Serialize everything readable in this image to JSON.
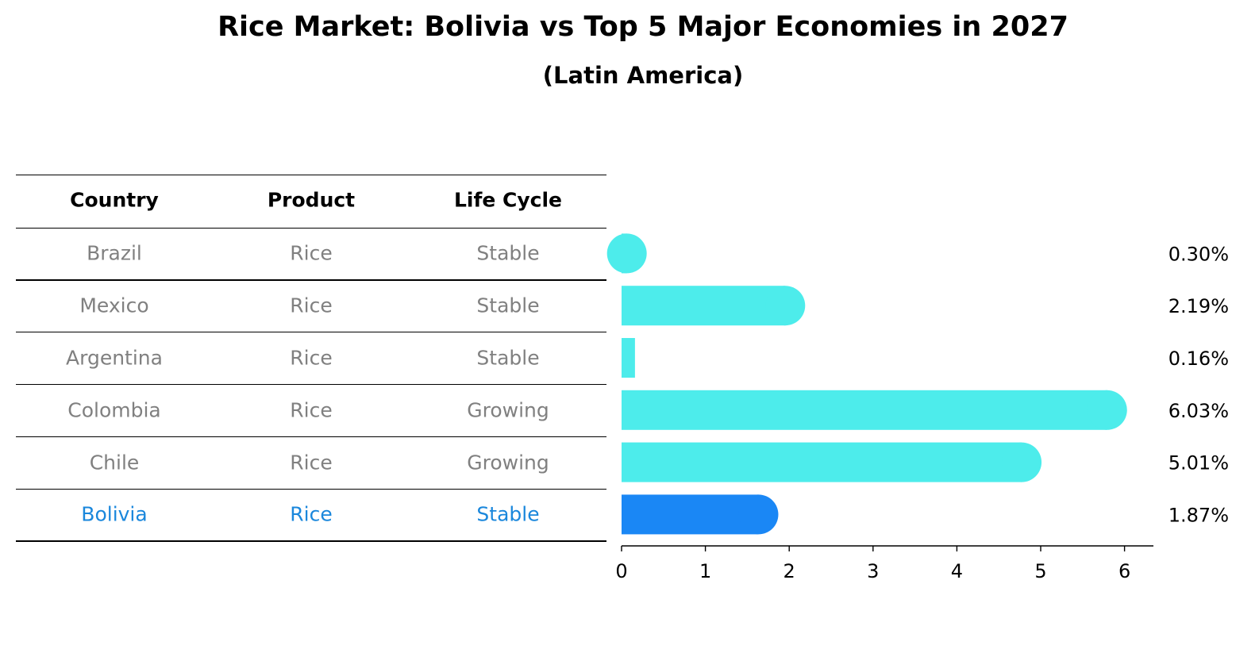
{
  "title": "Rice Market: Bolivia vs Top 5 Major Economies in 2027",
  "subtitle": "(Latin America)",
  "table": {
    "headers": [
      "Country",
      "Product",
      "Life Cycle"
    ],
    "rows": [
      {
        "country": "Brazil",
        "product": "Rice",
        "life_cycle": "Stable",
        "highlight": false
      },
      {
        "country": "Mexico",
        "product": "Rice",
        "life_cycle": "Stable",
        "highlight": false
      },
      {
        "country": "Argentina",
        "product": "Rice",
        "life_cycle": "Stable",
        "highlight": false
      },
      {
        "country": "Colombia",
        "product": "Rice",
        "life_cycle": "Growing",
        "highlight": false
      },
      {
        "country": "Chile",
        "product": "Rice",
        "life_cycle": "Growing",
        "highlight": false
      },
      {
        "country": "Bolivia",
        "product": "Rice",
        "life_cycle": "Stable",
        "highlight": true
      }
    ]
  },
  "colors": {
    "bar": "#4deceb",
    "highlight_bar": "#1a87f5",
    "highlight_text": "#1a87dc",
    "row_text": "#808080"
  },
  "chart_data": {
    "type": "bar",
    "orientation": "horizontal",
    "categories": [
      "Brazil",
      "Mexico",
      "Argentina",
      "Colombia",
      "Chile",
      "Bolivia"
    ],
    "values": [
      0.3,
      2.19,
      0.16,
      6.03,
      5.01,
      1.87
    ],
    "value_labels": [
      "0.30%",
      "2.19%",
      "0.16%",
      "6.03%",
      "5.01%",
      "1.87%"
    ],
    "highlight": "Bolivia",
    "xlim": [
      0,
      6.35
    ],
    "xticks": [
      0,
      1,
      2,
      3,
      4,
      5,
      6
    ],
    "xlabel": "",
    "ylabel": "",
    "grid": false,
    "legend": "none"
  }
}
